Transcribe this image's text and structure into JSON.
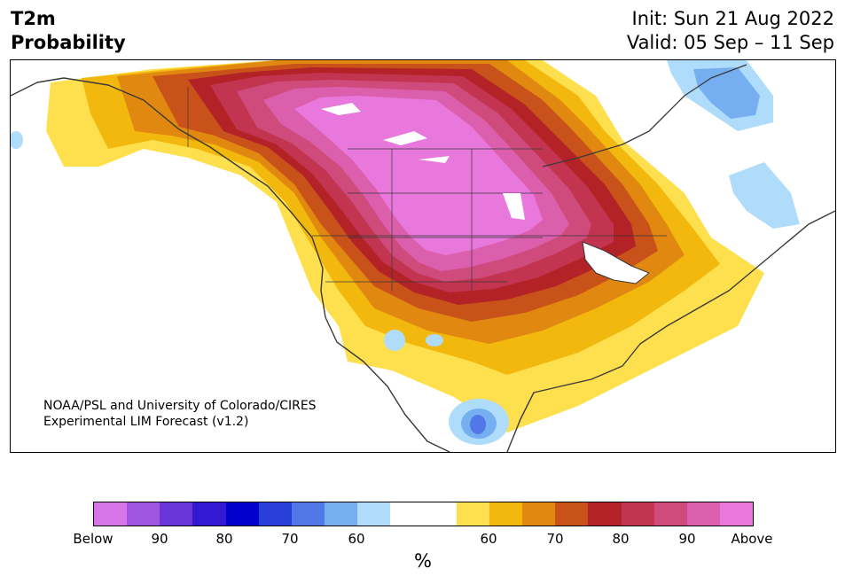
{
  "header": {
    "variable": "T2m",
    "product": "Probability",
    "init": "Init: Sun 21 Aug 2022",
    "valid": "Valid: 05 Sep – 11 Sep"
  },
  "credit": {
    "line1": "NOAA/PSL and University of Colorado/CIRES",
    "line2": "Experimental LIM Forecast (v1.2)"
  },
  "colorbar": {
    "unit": "%",
    "ticks": [
      "Below",
      "90",
      "80",
      "70",
      "60",
      "60",
      "70",
      "80",
      "90",
      "Above"
    ],
    "colors": [
      "#d575e8",
      "#9f55e0",
      "#6a35d8",
      "#3419d4",
      "#0000cc",
      "#2a3ed9",
      "#5277e6",
      "#76aef2",
      "#aedcfa",
      "#ffffff",
      "#ffffff",
      "#fee04e",
      "#f3b80e",
      "#e08810",
      "#c8521a",
      "#b22226",
      "#c2344f",
      "#cf4b7c",
      "#dc5fae",
      "#e878dc"
    ]
  },
  "map": {
    "region": "North America",
    "palette": {
      "above_high": "#e878dc",
      "above_90": "#dc5fae",
      "above_85": "#cf4b7c",
      "above_80": "#c2344f",
      "above_75": "#b22226",
      "above_70": "#c8521a",
      "above_65": "#e08810",
      "above_60": "#f3b80e",
      "above_55": "#fee04e",
      "below_55": "#aedcfa",
      "below_60": "#76aef2",
      "below_65": "#5277e6",
      "coast": "#3a3a3a"
    }
  }
}
